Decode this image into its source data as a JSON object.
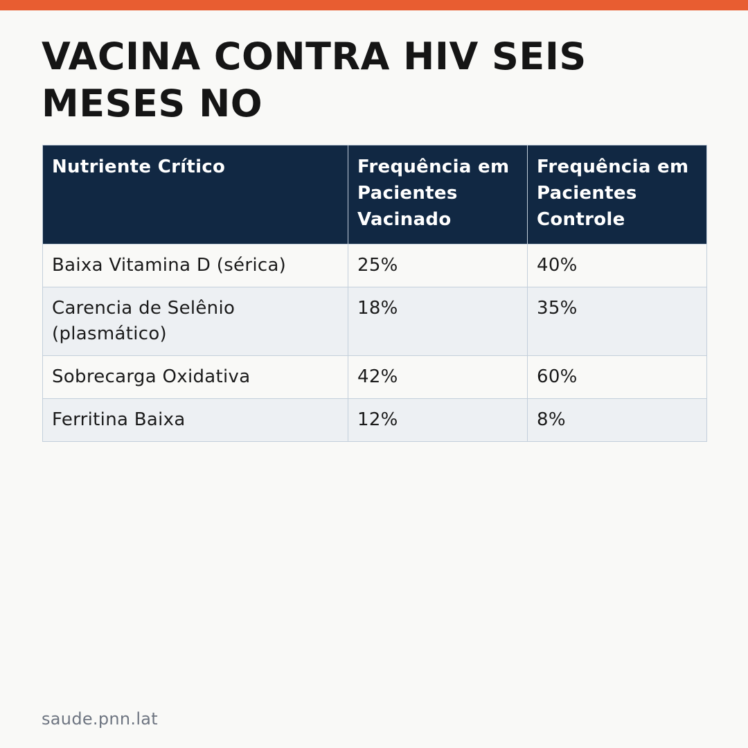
{
  "accent_color": "#e85d31",
  "header_color": "#112843",
  "title": "VACINA CONTRA HIV SEIS MESES NO",
  "table": {
    "headers": [
      "Nutriente Crítico",
      "Frequência em Pacientes Vacinado",
      "Frequência em Pacientes Controle"
    ],
    "rows": [
      [
        "Baixa Vitamina D (sérica)",
        "25%",
        "40%"
      ],
      [
        "Carencia de Selênio (plasmático)",
        "18%",
        "35%"
      ],
      [
        "Sobrecarga Oxidativa",
        "42%",
        "60%"
      ],
      [
        "Ferritina Baixa",
        "12%",
        "8%"
      ]
    ]
  },
  "footer": "saude.pnn.lat"
}
